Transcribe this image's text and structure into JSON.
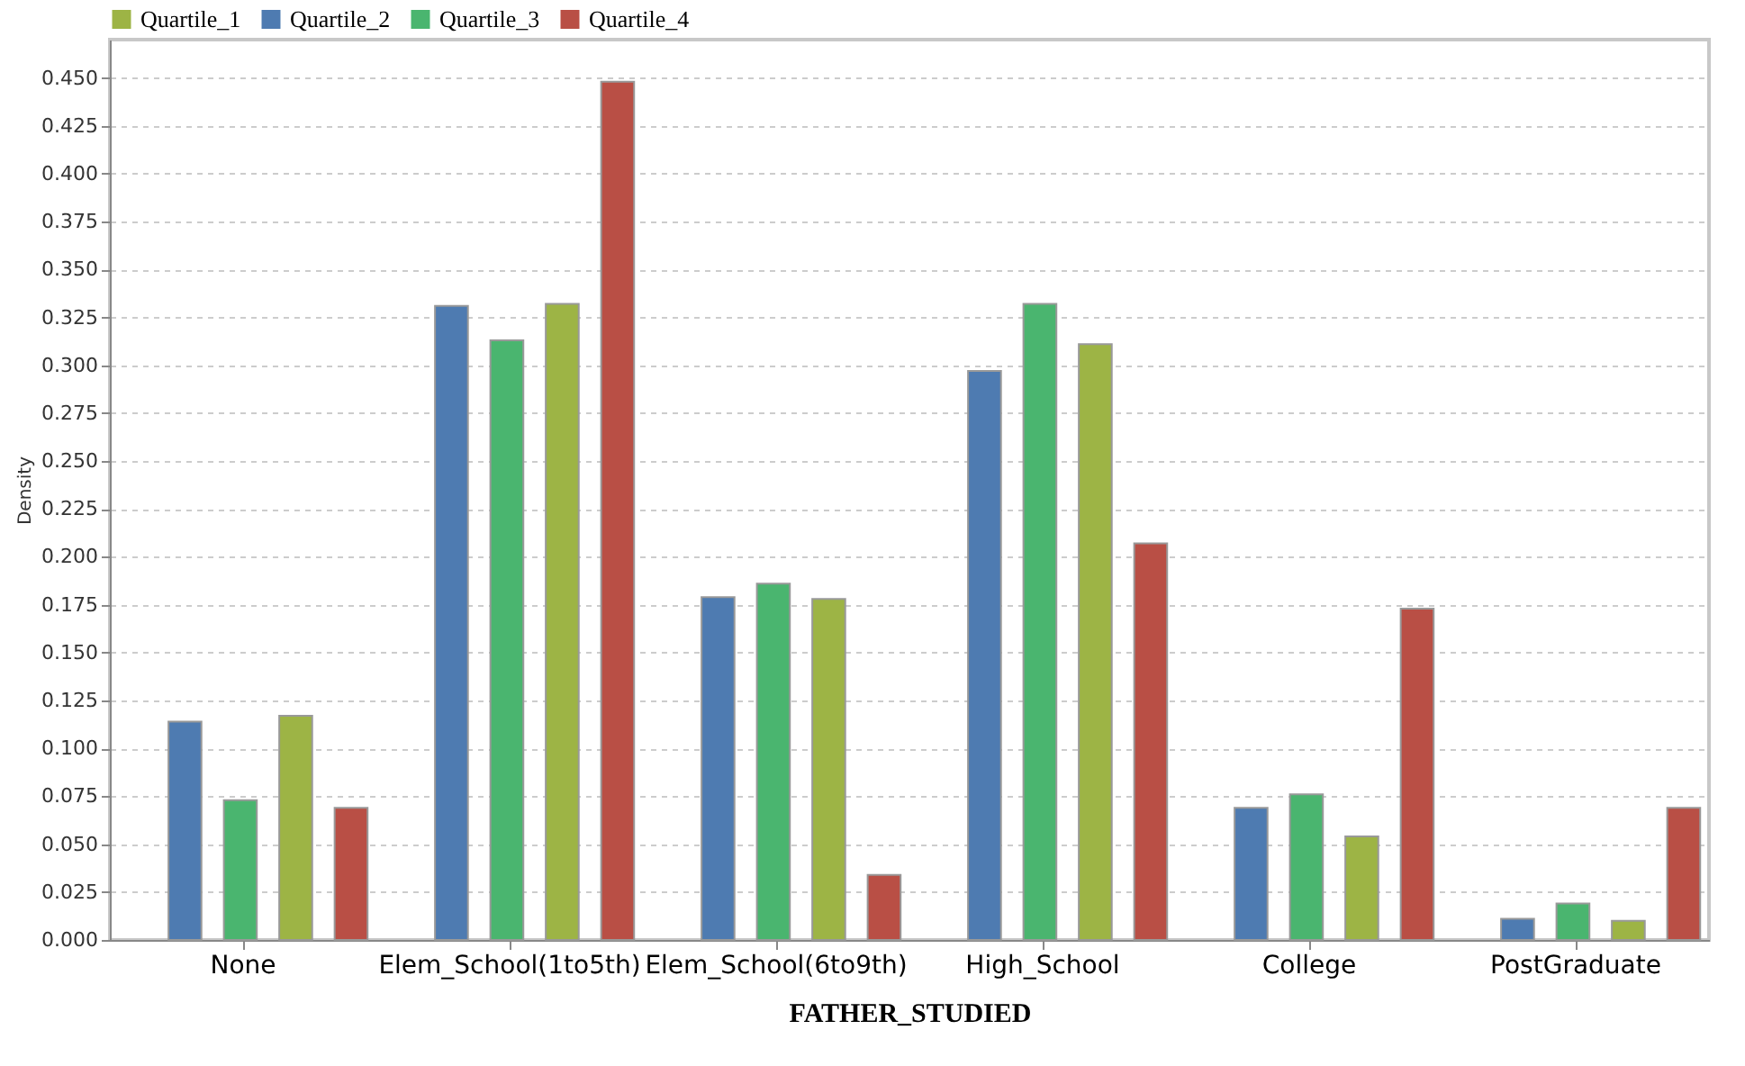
{
  "chart_data": {
    "type": "bar",
    "xlabel": "FATHER_STUDIED",
    "ylabel": "Density",
    "categories": [
      "None",
      "Elem_School(1to5th)",
      "Elem_School(6to9th)",
      "High_School",
      "College",
      "PostGraduate"
    ],
    "series": [
      {
        "name": "Quartile_2",
        "color": "#4e7bb1",
        "values": [
          0.114,
          0.331,
          0.179,
          0.297,
          0.069,
          0.011
        ]
      },
      {
        "name": "Quartile_3",
        "color": "#4ab56f",
        "values": [
          0.073,
          0.313,
          0.186,
          0.332,
          0.076,
          0.019
        ]
      },
      {
        "name": "Quartile_1",
        "color": "#9db445",
        "values": [
          0.117,
          0.332,
          0.178,
          0.311,
          0.054,
          0.01
        ]
      },
      {
        "name": "Quartile_4",
        "color": "#b94f45",
        "values": [
          0.069,
          0.448,
          0.034,
          0.207,
          0.173,
          0.069
        ]
      }
    ],
    "ylim": [
      0,
      0.47
    ],
    "yticks": [
      {
        "value": 0,
        "label": "0.000"
      },
      {
        "value": 0.025,
        "label": "0.025"
      },
      {
        "value": 0.05,
        "label": "0.050"
      },
      {
        "value": 0.075,
        "label": "0.075"
      },
      {
        "value": 0.1,
        "label": "0.100"
      },
      {
        "value": 0.125,
        "label": "0.125"
      },
      {
        "value": 0.15,
        "label": "0.150"
      },
      {
        "value": 0.175,
        "label": "0.175"
      },
      {
        "value": 0.2,
        "label": "0.200"
      },
      {
        "value": 0.225,
        "label": "0.225"
      },
      {
        "value": 0.25,
        "label": "0.250"
      },
      {
        "value": 0.275,
        "label": "0.275"
      },
      {
        "value": 0.3,
        "label": "0.300"
      },
      {
        "value": 0.325,
        "label": "0.325"
      },
      {
        "value": 0.35,
        "label": "0.350"
      },
      {
        "value": 0.375,
        "label": "0.375"
      },
      {
        "value": 0.4,
        "label": "0.400"
      },
      {
        "value": 0.425,
        "label": "0.425"
      },
      {
        "value": 0.45,
        "label": "0.450"
      }
    ],
    "grid": "y",
    "legend": "top left"
  }
}
